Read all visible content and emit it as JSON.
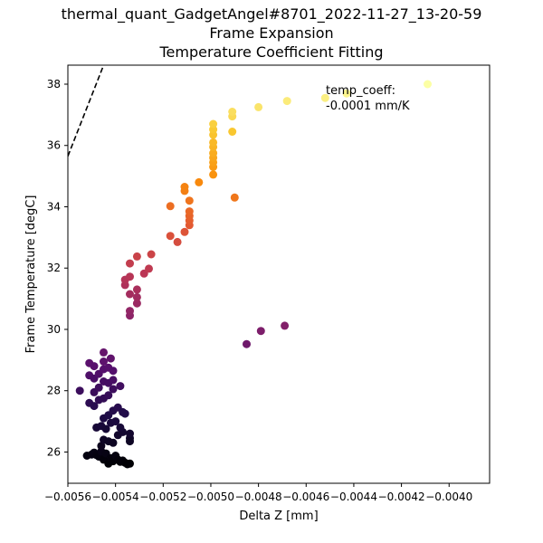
{
  "chart_data": {
    "type": "scatter",
    "title_lines": [
      "thermal_quant_GadgetAngel#8701_2022-11-27_13-20-59",
      "Frame Expansion",
      "Temperature Coefficient Fitting"
    ],
    "xlabel": "Delta Z [mm]",
    "ylabel": "Frame Temperature [degC]",
    "xlim": [
      -0.0056,
      -0.00383
    ],
    "ylim": [
      24.98,
      38.62
    ],
    "x_ticks": [
      -0.0056,
      -0.0054,
      -0.0052,
      -0.005,
      -0.0048,
      -0.0046,
      -0.0044,
      -0.0042,
      -0.004
    ],
    "x_tick_labels": [
      "−0.0056",
      "−0.0054",
      "−0.0052",
      "−0.0050",
      "−0.0048",
      "−0.0046",
      "−0.0044",
      "−0.0042",
      "−0.0040"
    ],
    "y_ticks": [
      26,
      28,
      30,
      32,
      34,
      36,
      38
    ],
    "y_tick_labels": [
      "26",
      "28",
      "30",
      "32",
      "34",
      "36",
      "38"
    ],
    "grid": false,
    "colormap": "inferno",
    "color_by": "y",
    "annotation": [
      "temp_coeff:",
      "-0.0001 mm/K"
    ],
    "fit_line": {
      "style": "dashed",
      "color": "#000000",
      "points": [
        [
          -0.0056,
          35.65
        ],
        [
          -0.00545,
          38.62
        ]
      ]
    },
    "points": [
      [
        -0.00552,
        25.88
      ],
      [
        -0.0055,
        25.92
      ],
      [
        -0.00549,
        25.98
      ],
      [
        -0.00548,
        25.9
      ],
      [
        -0.00547,
        25.85
      ],
      [
        -0.00546,
        26.02
      ],
      [
        -0.00545,
        25.75
      ],
      [
        -0.00544,
        25.95
      ],
      [
        -0.00543,
        25.62
      ],
      [
        -0.00542,
        25.8
      ],
      [
        -0.00541,
        25.7
      ],
      [
        -0.0054,
        25.88
      ],
      [
        -0.00539,
        25.75
      ],
      [
        -0.00538,
        25.68
      ],
      [
        -0.00537,
        25.72
      ],
      [
        -0.00536,
        25.65
      ],
      [
        -0.00535,
        25.6
      ],
      [
        -0.00534,
        25.62
      ],
      [
        -0.00546,
        26.2
      ],
      [
        -0.00545,
        26.4
      ],
      [
        -0.00543,
        26.35
      ],
      [
        -0.00541,
        26.3
      ],
      [
        -0.00539,
        26.55
      ],
      [
        -0.00537,
        26.65
      ],
      [
        -0.00534,
        26.45
      ],
      [
        -0.00534,
        26.6
      ],
      [
        -0.00534,
        26.35
      ],
      [
        -0.00548,
        26.8
      ],
      [
        -0.00546,
        26.85
      ],
      [
        -0.00544,
        26.75
      ],
      [
        -0.00542,
        26.95
      ],
      [
        -0.0054,
        27.0
      ],
      [
        -0.00538,
        26.8
      ],
      [
        -0.00536,
        27.25
      ],
      [
        -0.00545,
        27.1
      ],
      [
        -0.00543,
        27.2
      ],
      [
        -0.00541,
        27.35
      ],
      [
        -0.00539,
        27.45
      ],
      [
        -0.00537,
        27.3
      ],
      [
        -0.00551,
        27.6
      ],
      [
        -0.00549,
        27.5
      ],
      [
        -0.00547,
        27.7
      ],
      [
        -0.00545,
        27.75
      ],
      [
        -0.00543,
        27.85
      ],
      [
        -0.00541,
        28.05
      ],
      [
        -0.00538,
        28.15
      ],
      [
        -0.00555,
        28.0
      ],
      [
        -0.00549,
        27.95
      ],
      [
        -0.00547,
        28.1
      ],
      [
        -0.00545,
        28.3
      ],
      [
        -0.00543,
        28.25
      ],
      [
        -0.00541,
        28.35
      ],
      [
        -0.00551,
        28.5
      ],
      [
        -0.00549,
        28.4
      ],
      [
        -0.00547,
        28.55
      ],
      [
        -0.00545,
        28.7
      ],
      [
        -0.00543,
        28.75
      ],
      [
        -0.00541,
        28.65
      ],
      [
        -0.00551,
        28.9
      ],
      [
        -0.00549,
        28.8
      ],
      [
        -0.00545,
        28.95
      ],
      [
        -0.00542,
        29.05
      ],
      [
        -0.00545,
        29.25
      ],
      [
        -0.00485,
        29.52
      ],
      [
        -0.00479,
        29.95
      ],
      [
        -0.00469,
        30.12
      ],
      [
        -0.00534,
        30.45
      ],
      [
        -0.00534,
        30.6
      ],
      [
        -0.00531,
        30.85
      ],
      [
        -0.00531,
        31.05
      ],
      [
        -0.00534,
        31.15
      ],
      [
        -0.00536,
        31.45
      ],
      [
        -0.00536,
        31.62
      ],
      [
        -0.00534,
        31.72
      ],
      [
        -0.00531,
        31.3
      ],
      [
        -0.00528,
        31.82
      ],
      [
        -0.00526,
        31.98
      ],
      [
        -0.00534,
        32.15
      ],
      [
        -0.00531,
        32.38
      ],
      [
        -0.00525,
        32.45
      ],
      [
        -0.00517,
        33.05
      ],
      [
        -0.00514,
        32.85
      ],
      [
        -0.00511,
        33.18
      ],
      [
        -0.00509,
        33.4
      ],
      [
        -0.00509,
        33.55
      ],
      [
        -0.00509,
        33.7
      ],
      [
        -0.00509,
        33.85
      ],
      [
        -0.00517,
        34.02
      ],
      [
        -0.00509,
        34.2
      ],
      [
        -0.00511,
        34.52
      ],
      [
        -0.00511,
        34.65
      ],
      [
        -0.00505,
        34.8
      ],
      [
        -0.0049,
        34.3
      ],
      [
        -0.00499,
        35.05
      ],
      [
        -0.00499,
        35.3
      ],
      [
        -0.00499,
        35.45
      ],
      [
        -0.00499,
        35.6
      ],
      [
        -0.00499,
        35.75
      ],
      [
        -0.00499,
        35.95
      ],
      [
        -0.00499,
        36.1
      ],
      [
        -0.00499,
        36.35
      ],
      [
        -0.00499,
        36.52
      ],
      [
        -0.00499,
        36.7
      ],
      [
        -0.00491,
        36.45
      ],
      [
        -0.00491,
        36.95
      ],
      [
        -0.00491,
        37.1
      ],
      [
        -0.0048,
        37.25
      ],
      [
        -0.00468,
        37.45
      ],
      [
        -0.00452,
        37.55
      ],
      [
        -0.00443,
        37.7
      ],
      [
        -0.00409,
        38.0
      ]
    ]
  }
}
